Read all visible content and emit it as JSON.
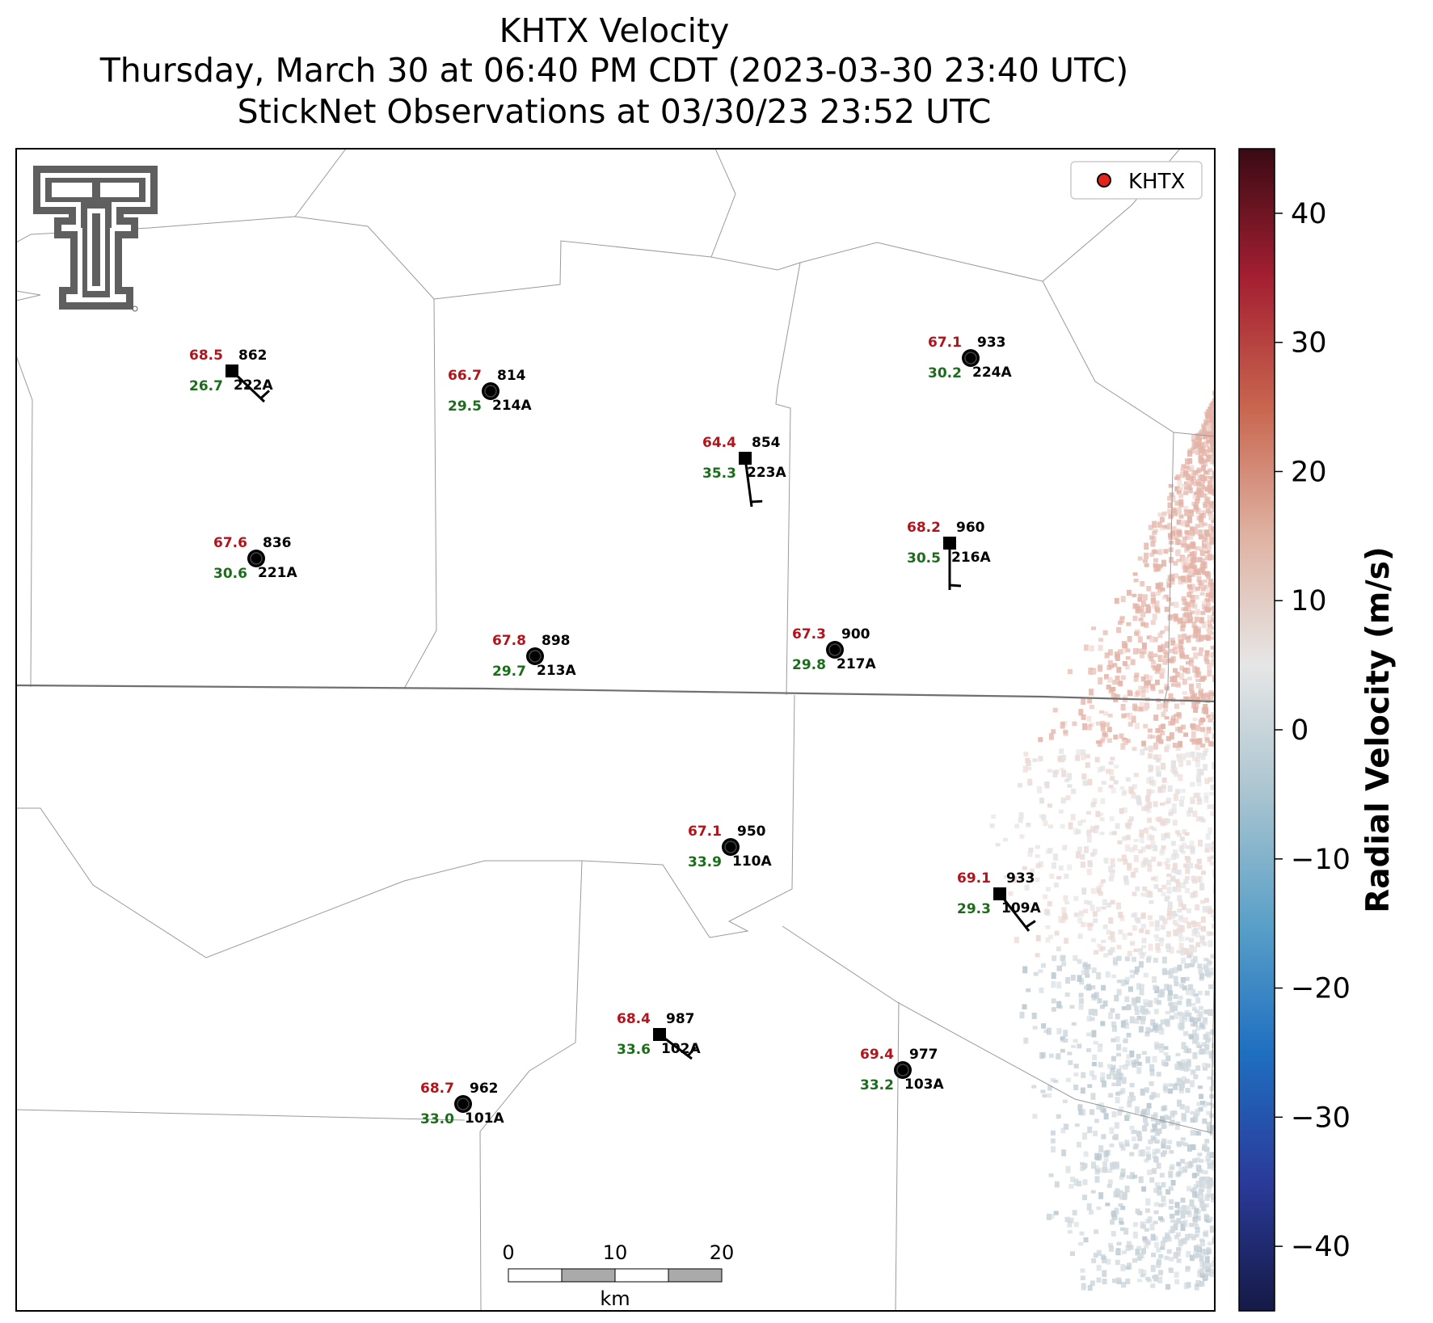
{
  "title": {
    "line1": "KHTX Velocity",
    "line2": "Thursday, March 30 at 06:40 PM CDT (2023-03-30 23:40 UTC)",
    "line3": "StickNet Observations at 03/30/23 23:52 UTC"
  },
  "legend": {
    "label": "KHTX",
    "marker_color": "#e3241b"
  },
  "colorbar": {
    "label": "Radial Velocity (m/s)",
    "ticks": [
      "40",
      "30",
      "20",
      "10",
      "0",
      "−10",
      "−20",
      "−30",
      "−40"
    ],
    "range": [
      -45,
      45
    ],
    "colors": [
      "#151a45",
      "#2a3a9a",
      "#1f6fc1",
      "#5aa0c8",
      "#a9c4d0",
      "#e6e6e6",
      "#dfb2a2",
      "#c8654e",
      "#a41f32",
      "#3a0a14"
    ]
  },
  "scalebar": {
    "ticks": [
      "0",
      "10",
      "20"
    ],
    "unit": "km"
  },
  "stations": [
    {
      "id": "222A",
      "temp": "68.5",
      "dew": "26.7",
      "pressure": "862",
      "marker": "square"
    },
    {
      "id": "214A",
      "temp": "66.7",
      "dew": "29.5",
      "pressure": "814",
      "marker": "circle"
    },
    {
      "id": "223A",
      "temp": "64.4",
      "dew": "35.3",
      "pressure": "854",
      "marker": "square"
    },
    {
      "id": "224A",
      "temp": "67.1",
      "dew": "30.2",
      "pressure": "933",
      "marker": "circle"
    },
    {
      "id": "221A",
      "temp": "67.6",
      "dew": "30.6",
      "pressure": "836",
      "marker": "circle"
    },
    {
      "id": "216A",
      "temp": "68.2",
      "dew": "30.5",
      "pressure": "960",
      "marker": "square"
    },
    {
      "id": "213A",
      "temp": "67.8",
      "dew": "29.7",
      "pressure": "898",
      "marker": "circle"
    },
    {
      "id": "217A",
      "temp": "67.3",
      "dew": "29.8",
      "pressure": "900",
      "marker": "circle"
    },
    {
      "id": "110A",
      "temp": "67.1",
      "dew": "33.9",
      "pressure": "950",
      "marker": "circle"
    },
    {
      "id": "109A",
      "temp": "69.1",
      "dew": "29.3",
      "pressure": "933",
      "marker": "square"
    },
    {
      "id": "102A",
      "temp": "68.4",
      "dew": "33.6",
      "pressure": "987",
      "marker": "square"
    },
    {
      "id": "103A",
      "temp": "69.4",
      "dew": "33.2",
      "pressure": "977",
      "marker": "circle"
    },
    {
      "id": "101A",
      "temp": "68.7",
      "dew": "33.0",
      "pressure": "962",
      "marker": "circle"
    }
  ]
}
